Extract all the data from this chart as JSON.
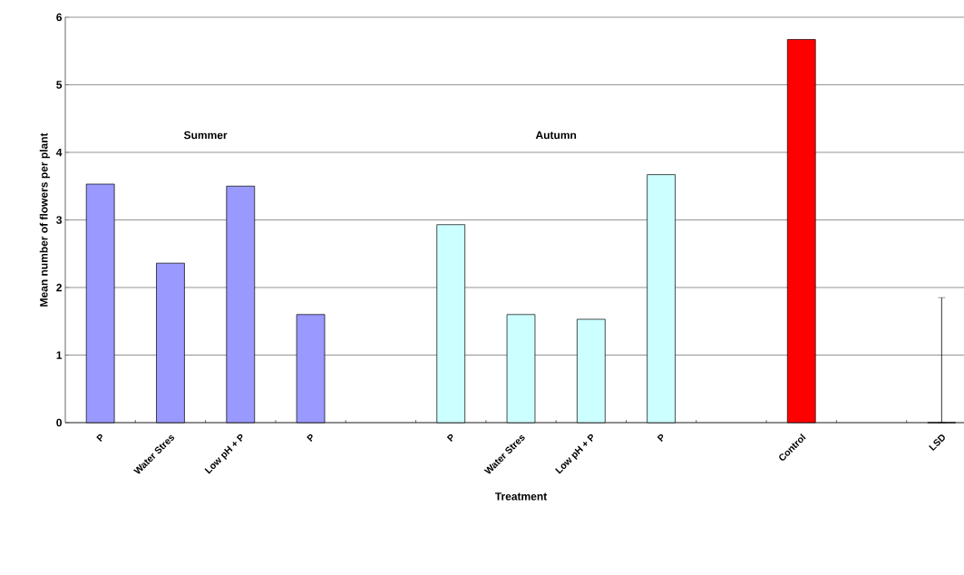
{
  "chart_data": {
    "type": "bar",
    "xlabel": "Treatment",
    "ylabel": "Mean number of flowers per plant",
    "categories": [
      "P",
      "Water Stres",
      "Low pH + P",
      "P",
      null,
      "P",
      "Water Stres",
      "Low pH + P",
      "P",
      null,
      "Control",
      null,
      "LSD"
    ],
    "series": [
      {
        "color": "#9999ff",
        "values": [
          3.53,
          2.36,
          3.5,
          1.6,
          null,
          null,
          null,
          null,
          null,
          null,
          null,
          null,
          null
        ]
      },
      {
        "color": "#ccffff",
        "values": [
          null,
          null,
          null,
          null,
          null,
          2.93,
          1.6,
          1.53,
          3.67,
          null,
          null,
          null,
          null
        ]
      },
      {
        "color": "#ff0000",
        "values": [
          null,
          null,
          null,
          null,
          null,
          null,
          null,
          null,
          null,
          null,
          5.67,
          null,
          null
        ]
      },
      {
        "color": "#000000",
        "values": [
          null,
          null,
          null,
          null,
          null,
          null,
          null,
          null,
          null,
          null,
          null,
          null,
          0
        ],
        "errors": [
          null,
          null,
          null,
          null,
          null,
          null,
          null,
          null,
          null,
          null,
          null,
          null,
          [
            0,
            1.85
          ]
        ]
      }
    ],
    "annotations": [
      "Summer",
      "Autumn"
    ],
    "ylim": [
      0,
      6
    ],
    "yticks": [
      0,
      1,
      2,
      3,
      4,
      5,
      6
    ],
    "grid": "y"
  }
}
